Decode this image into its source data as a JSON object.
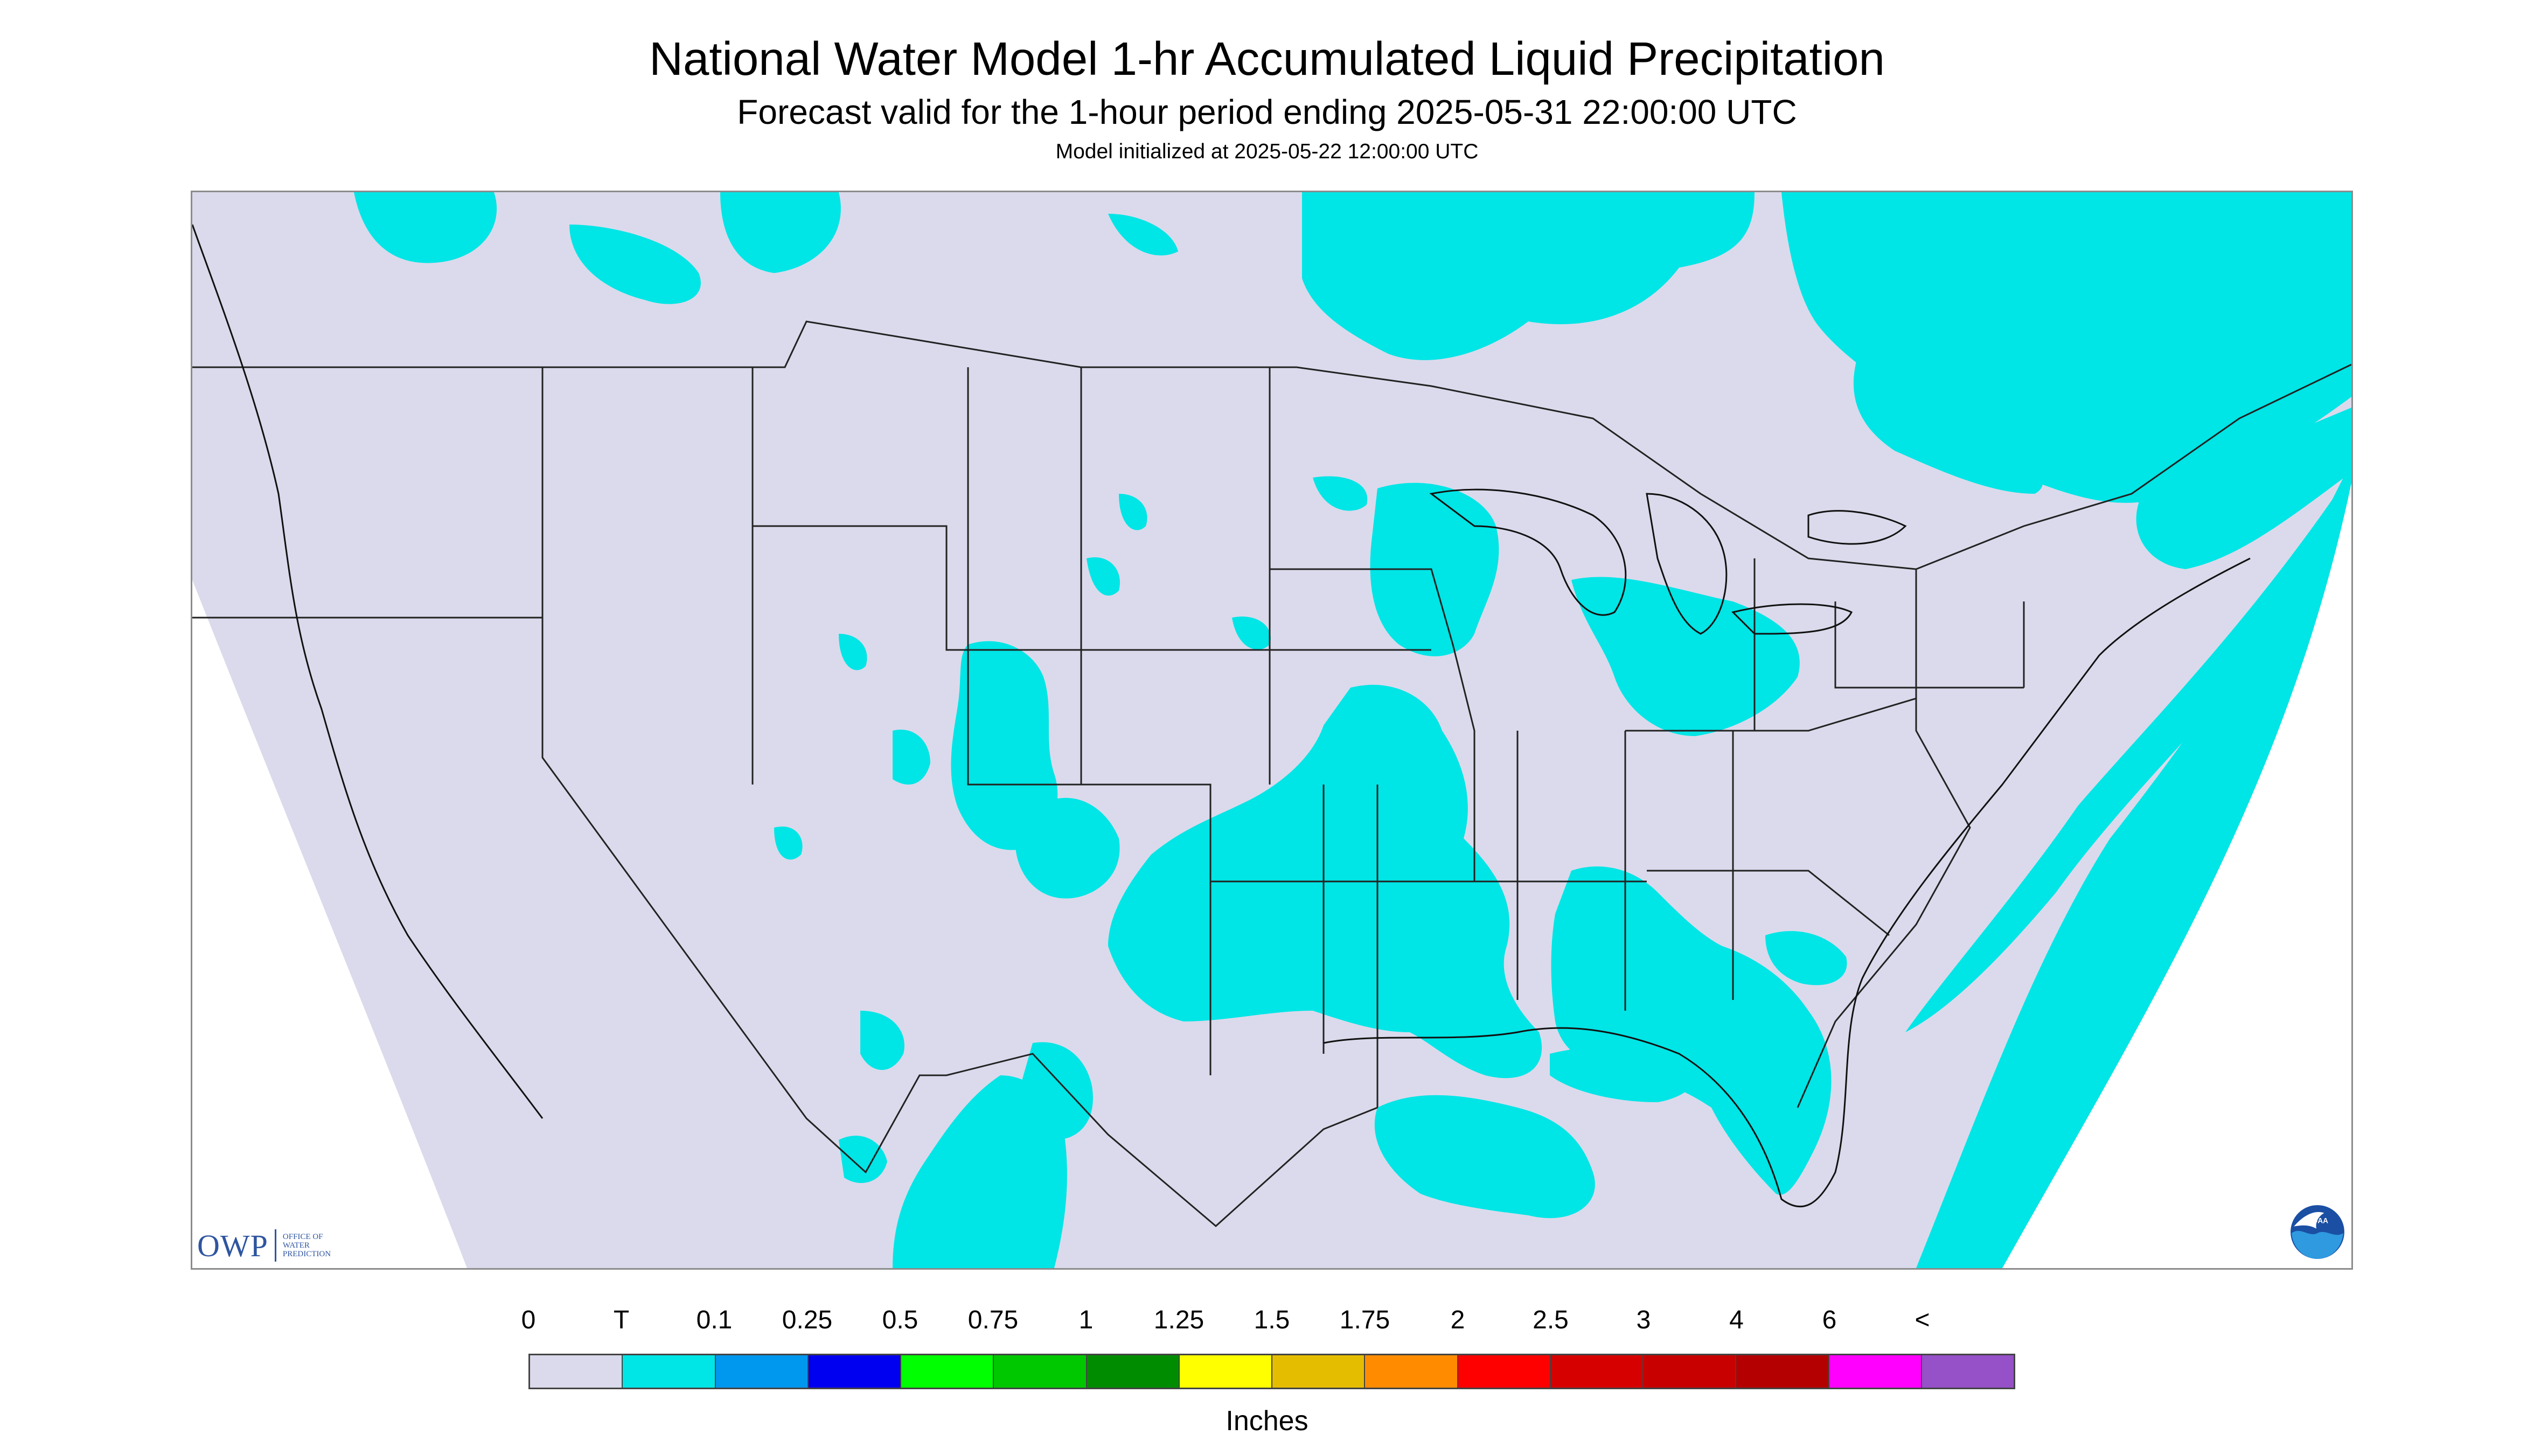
{
  "title": "National Water Model 1-hr Accumulated Liquid Precipitation",
  "subtitle": "Forecast valid for the 1-hour period ending 2025-05-31 22:00:00 UTC",
  "init_line": "Model initialized at 2025-05-22 12:00:00 UTC",
  "map": {
    "background_color": "#dadaec",
    "outside_color": "#ffffff",
    "precip_color": "#00e5e5",
    "border_color": "#222222"
  },
  "logos": {
    "owp_main": "OWP",
    "owp_sub": [
      "OFFICE OF",
      "WATER",
      "PREDICTION"
    ],
    "noaa": "NOAA"
  },
  "legend": {
    "labels": [
      "0",
      "T",
      "0.1",
      "0.25",
      "0.5",
      "0.75",
      "1",
      "1.25",
      "1.5",
      "1.75",
      "2",
      "2.5",
      "3",
      "4",
      "6",
      "<"
    ],
    "colors": [
      "#dadaec",
      "#00e5e5",
      "#0097ee",
      "#0000f0",
      "#00ff00",
      "#00c800",
      "#008c00",
      "#ffff00",
      "#e5bd00",
      "#ff8c00",
      "#ff0000",
      "#d70000",
      "#c80000",
      "#b40000",
      "#ff00ff",
      "#9650c8"
    ],
    "units": "Inches"
  }
}
